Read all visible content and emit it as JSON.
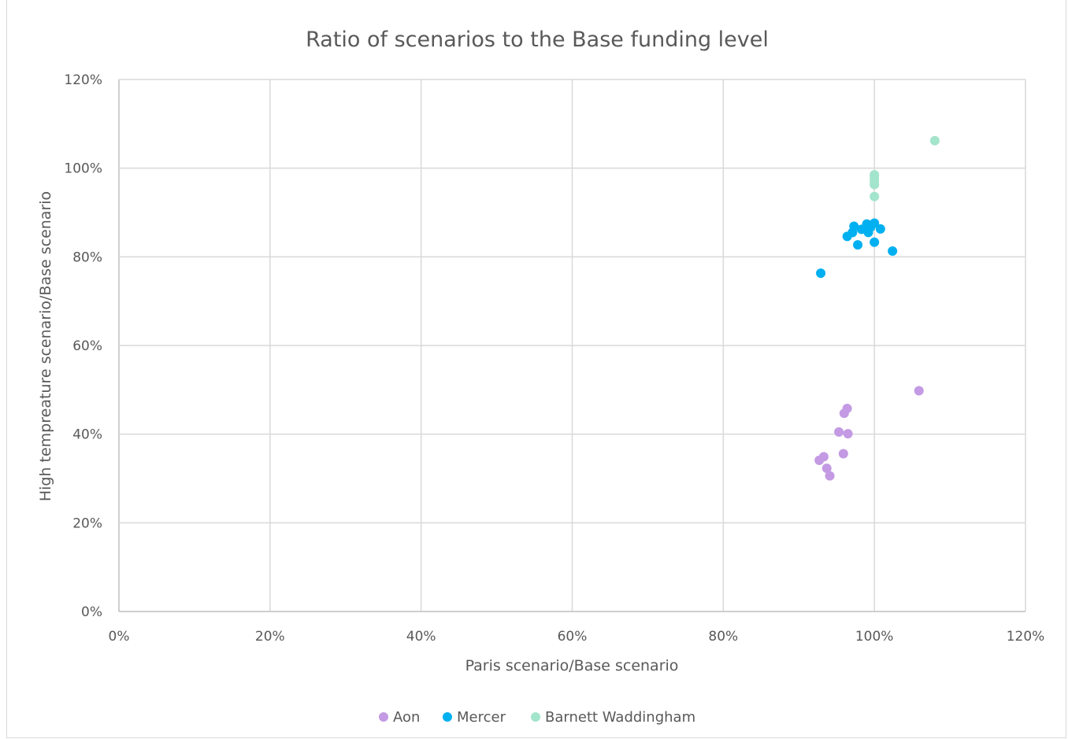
{
  "chart_data": {
    "type": "scatter",
    "title": "Ratio of scenarios to the Base funding level",
    "xlabel": "Paris scenario/Base scenario",
    "ylabel": "High tempreature scenario/Base scenario",
    "xlim": [
      0,
      1.2
    ],
    "ylim": [
      0,
      1.2
    ],
    "x_ticks": [
      "0%",
      "20%",
      "40%",
      "60%",
      "80%",
      "100%",
      "120%"
    ],
    "y_ticks": [
      "0%",
      "20%",
      "40%",
      "60%",
      "80%",
      "100%",
      "120%"
    ],
    "grid": true,
    "legend_position": "bottom",
    "series": [
      {
        "name": "Aon",
        "color": "#c39ae3",
        "points": [
          [
            0.927,
            0.341
          ],
          [
            0.933,
            0.349
          ],
          [
            0.937,
            0.323
          ],
          [
            0.941,
            0.306
          ],
          [
            0.953,
            0.405
          ],
          [
            0.959,
            0.356
          ],
          [
            0.96,
            0.447
          ],
          [
            0.964,
            0.458
          ],
          [
            0.965,
            0.401
          ],
          [
            1.059,
            0.498
          ]
        ]
      },
      {
        "name": "Mercer",
        "color": "#00b0f0",
        "points": [
          [
            0.929,
            0.763
          ],
          [
            0.964,
            0.846
          ],
          [
            0.971,
            0.855
          ],
          [
            0.973,
            0.869
          ],
          [
            0.978,
            0.827
          ],
          [
            0.983,
            0.862
          ],
          [
            0.99,
            0.874
          ],
          [
            0.992,
            0.855
          ],
          [
            0.995,
            0.867
          ],
          [
            1.0,
            0.876
          ],
          [
            1.0,
            0.833
          ],
          [
            1.008,
            0.863
          ],
          [
            1.024,
            0.813
          ]
        ]
      },
      {
        "name": "Barnett Waddingham",
        "color": "#a3e4cc",
        "points": [
          [
            1.0,
            0.936
          ],
          [
            1.0,
            0.963
          ],
          [
            1.0,
            0.97
          ],
          [
            1.0,
            0.977
          ],
          [
            1.0,
            0.985
          ],
          [
            1.08,
            1.062
          ]
        ]
      }
    ]
  }
}
